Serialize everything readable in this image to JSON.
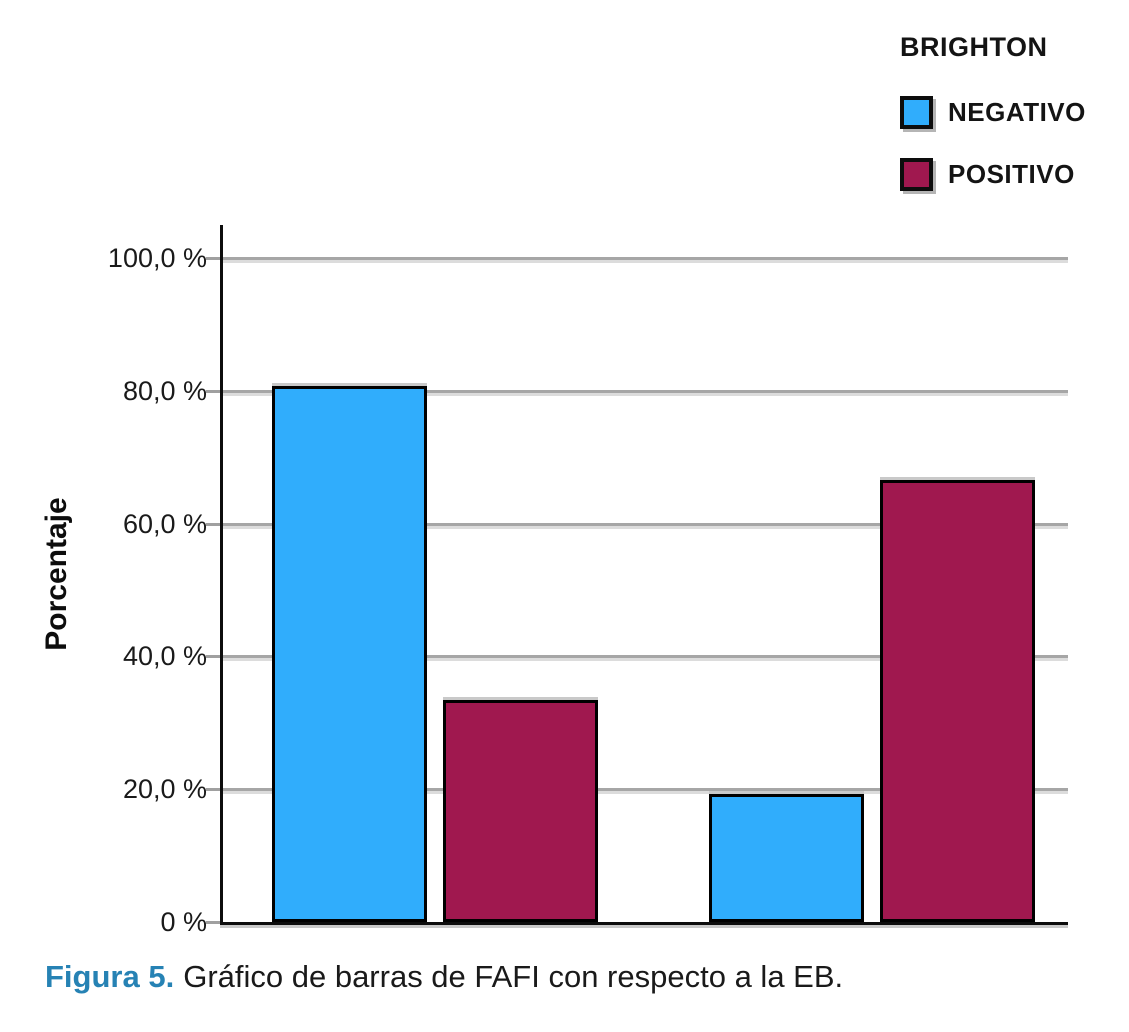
{
  "chart_data": {
    "type": "bar",
    "legend_title": "BRIGHTON",
    "ylabel": "Porcentaje",
    "xlabel": "",
    "ylim": [
      0,
      100
    ],
    "yticks": [
      0,
      20,
      40,
      60,
      80,
      100
    ],
    "ytick_labels": [
      "0 %",
      "20,0 %",
      "40,0 %",
      "60,0 %",
      "80,0 %",
      "100,0 %"
    ],
    "categories": [
      "",
      ""
    ],
    "series": [
      {
        "name": "NEGATIVO",
        "color": "#30ADFC",
        "values": [
          80.7,
          19.3
        ]
      },
      {
        "name": "POSITIVO",
        "color": "#A0184F",
        "values": [
          33.4,
          66.6
        ]
      }
    ],
    "grid": true,
    "legend_position": "top-right",
    "colors": {
      "grid": "#A6A6A6",
      "axis": "#0D0D0D",
      "bar_border": "#000000"
    }
  },
  "caption": {
    "label": "Figura 5.",
    "text": "Gráfico de barras de FAFI con respecto a la EB.",
    "label_color": "#2682B4"
  }
}
